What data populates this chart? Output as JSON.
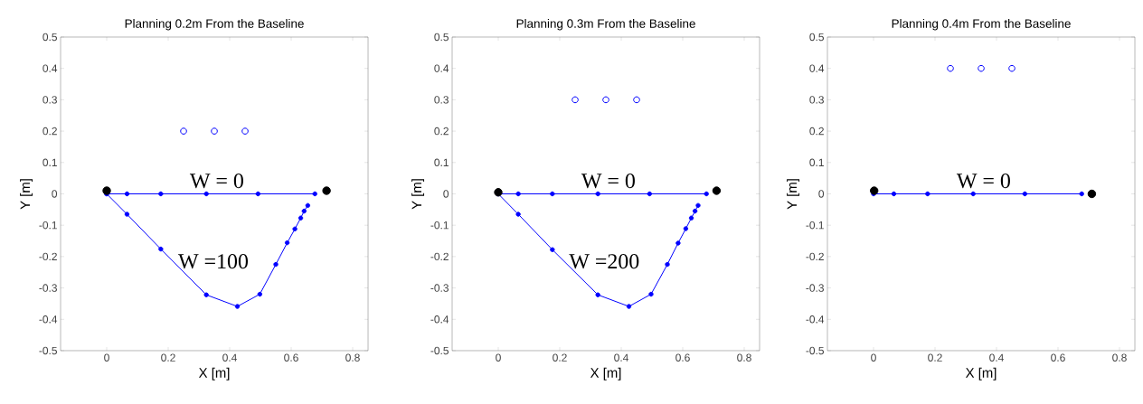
{
  "chart_data": [
    {
      "type": "line",
      "title": "Planning 0.2m From the Baseline",
      "xlabel": "X [m]",
      "ylabel": "Y [m]",
      "xlim": [
        -0.15,
        0.85
      ],
      "ylim": [
        -0.5,
        0.5
      ],
      "xticks": [
        0,
        0.2,
        0.4,
        0.6,
        0.8
      ],
      "yticks": [
        -0.5,
        -0.4,
        -0.3,
        -0.2,
        -0.1,
        0,
        0.1,
        0.2,
        0.3,
        0.4,
        0.5
      ],
      "series": [
        {
          "color": "#0000ff",
          "marker": "circle",
          "x": [
            0,
            0.066,
            0.176,
            0.324,
            0.492,
            0.677
          ],
          "values": [
            0,
            0,
            0,
            0,
            0,
            0
          ]
        },
        {
          "color": "#0000ff",
          "marker": "circle",
          "x": [
            0,
            0.066,
            0.176,
            0.324,
            0.425,
            0.498,
            0.55,
            0.587,
            0.612,
            0.631,
            0.642,
            0.654
          ],
          "values": [
            0,
            -0.065,
            -0.176,
            -0.322,
            -0.359,
            -0.32,
            -0.225,
            -0.156,
            -0.112,
            -0.077,
            -0.055,
            -0.037
          ]
        },
        {
          "type": "scatter",
          "color": "#0000ff",
          "marker": "circle",
          "x": [
            0.25,
            0.35,
            0.45
          ],
          "values": [
            0.2,
            0.2,
            0.2
          ]
        },
        {
          "type": "scatter",
          "color": "#000000",
          "x": [
            0,
            0.715
          ],
          "values": [
            0.01,
            0.01
          ]
        }
      ],
      "annotations": [
        "W = 0",
        "W =100"
      ]
    },
    {
      "type": "line",
      "title": "Planning 0.3m From the Baseline",
      "xlabel": "X [m]",
      "ylabel": "Y [m]",
      "xlim": [
        -0.15,
        0.85
      ],
      "ylim": [
        -0.5,
        0.5
      ],
      "xticks": [
        0,
        0.2,
        0.4,
        0.6,
        0.8
      ],
      "yticks": [
        -0.5,
        -0.4,
        -0.3,
        -0.2,
        -0.1,
        0,
        0.1,
        0.2,
        0.3,
        0.4,
        0.5
      ],
      "series": [
        {
          "color": "#0000ff",
          "marker": "circle",
          "x": [
            0,
            0.065,
            0.176,
            0.324,
            0.492,
            0.677
          ],
          "values": [
            0,
            0,
            0,
            0,
            0,
            0
          ]
        },
        {
          "color": "#0000ff",
          "marker": "circle",
          "x": [
            0,
            0.065,
            0.176,
            0.324,
            0.425,
            0.497,
            0.55,
            0.585,
            0.61,
            0.628,
            0.64,
            0.65
          ],
          "values": [
            0,
            -0.065,
            -0.178,
            -0.322,
            -0.359,
            -0.32,
            -0.225,
            -0.157,
            -0.111,
            -0.077,
            -0.055,
            -0.037
          ]
        },
        {
          "type": "scatter",
          "color": "#0000ff",
          "marker": "circle",
          "x": [
            0.25,
            0.35,
            0.45
          ],
          "values": [
            0.3,
            0.3,
            0.3
          ]
        },
        {
          "type": "scatter",
          "color": "#000000",
          "x": [
            0,
            0.71
          ],
          "values": [
            0.005,
            0.01
          ]
        }
      ],
      "annotations": [
        "W = 0",
        "W =200"
      ]
    },
    {
      "type": "line",
      "title": "Planning 0.4m From the Baseline",
      "xlabel": "X [m]",
      "ylabel": "Y [m]",
      "xlim": [
        -0.15,
        0.85
      ],
      "ylim": [
        -0.5,
        0.5
      ],
      "xticks": [
        0,
        0.2,
        0.4,
        0.6,
        0.8
      ],
      "yticks": [
        -0.5,
        -0.4,
        -0.3,
        -0.2,
        -0.1,
        0,
        0.1,
        0.2,
        0.3,
        0.4,
        0.5
      ],
      "series": [
        {
          "color": "#0000ff",
          "marker": "circle",
          "x": [
            0,
            0.066,
            0.176,
            0.324,
            0.492,
            0.677
          ],
          "values": [
            0,
            0,
            0,
            0,
            0,
            0
          ]
        },
        {
          "type": "scatter",
          "color": "#0000ff",
          "marker": "circle",
          "x": [
            0.25,
            0.35,
            0.45
          ],
          "values": [
            0.4,
            0.4,
            0.4
          ]
        },
        {
          "type": "scatter",
          "color": "#000000",
          "x": [
            0.002,
            0.71
          ],
          "values": [
            0.01,
            0
          ]
        }
      ],
      "annotations": [
        "W = 0"
      ]
    }
  ]
}
